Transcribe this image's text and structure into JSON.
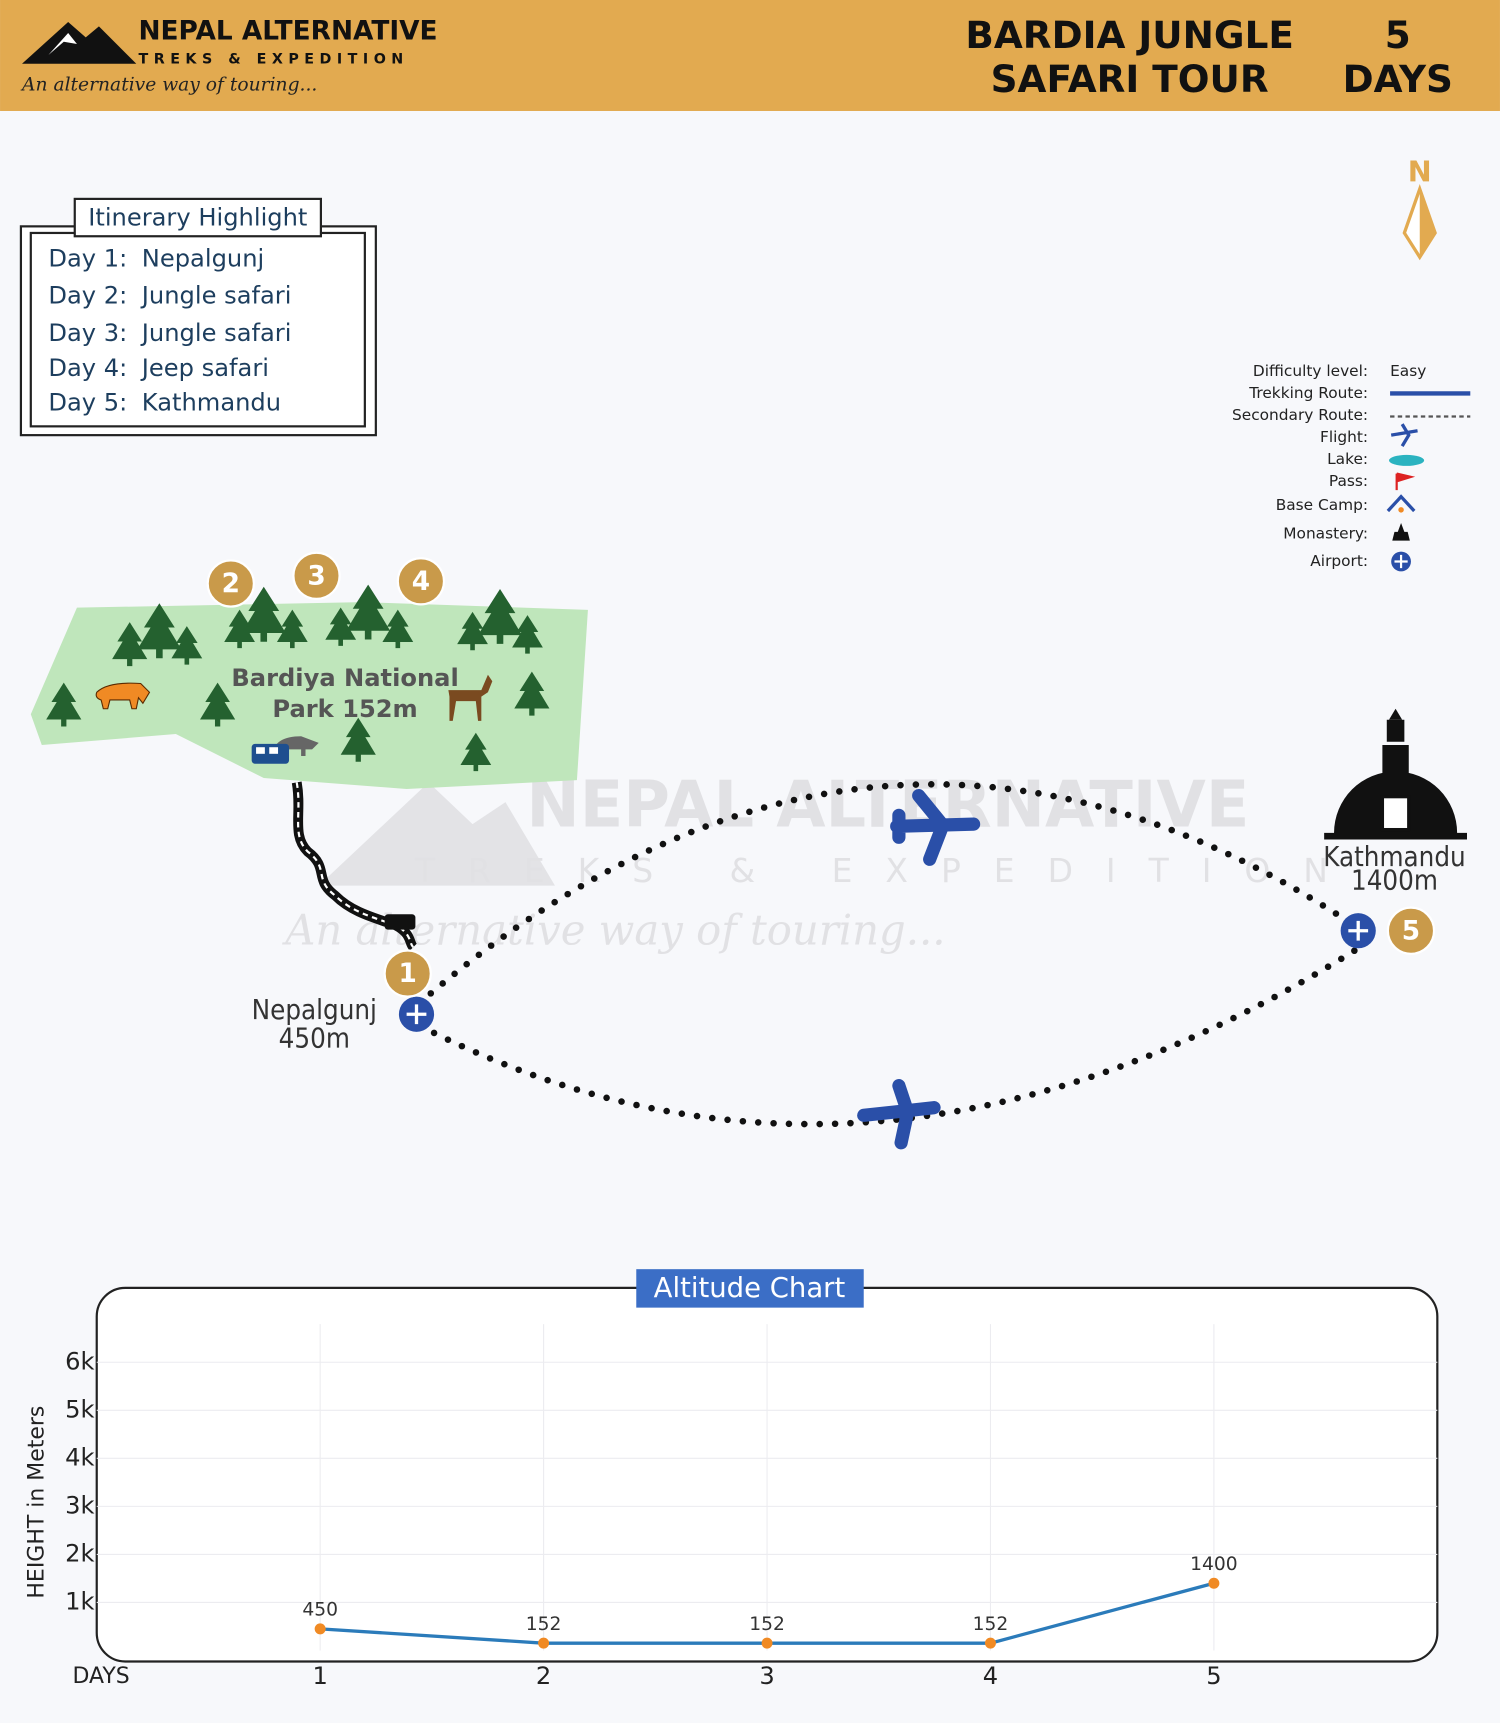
{
  "header": {
    "brand": "NEPAL ALTERNATIVE",
    "brand_sub": "TREKS & EXPEDITION",
    "tagline": "An alternative way of touring...",
    "title_lines": [
      "BARDIA JUNGLE",
      "SAFARI TOUR"
    ],
    "duration_lines": [
      "5",
      "DAYS"
    ]
  },
  "itinerary": {
    "title": "Itinerary Highlight",
    "rows": [
      {
        "day": "Day 1:",
        "place": "Nepalgunj"
      },
      {
        "day": "Day 2:",
        "place": "Jungle safari"
      },
      {
        "day": "Day 3:",
        "place": "Jungle safari"
      },
      {
        "day": "Day 4:",
        "place": "Jeep safari"
      },
      {
        "day": "Day 5:",
        "place": "Kathmandu"
      }
    ]
  },
  "compass": "N",
  "legend": {
    "difficulty_label": "Difficulty level:",
    "difficulty": "Easy",
    "items": [
      "Trekking Route:",
      "Secondary Route:",
      "Flight:",
      "Lake:",
      "Pass:",
      "Base Camp:",
      "Monastery:",
      "Airport:"
    ]
  },
  "map": {
    "park_lines": [
      "Bardiya National",
      "Park 152m"
    ],
    "start_lines": [
      "Nepalgunj",
      "450m"
    ],
    "end_lines": [
      "Kathmandu",
      "1400m"
    ],
    "markers": [
      "1",
      "2",
      "3",
      "4",
      "5"
    ],
    "watermark": {
      "brand": "NEPAL ALTERNATIVE",
      "sub": "TREKS & EXPEDITION",
      "tagline": "An alternative way of touring..."
    }
  },
  "chart_data": {
    "type": "line",
    "title": "Altitude Chart",
    "x_label": "DAYS",
    "y_label": "HEIGHT in Meters",
    "x": [
      1,
      2,
      3,
      4,
      5
    ],
    "xlim": [
      0,
      6
    ],
    "xticks": [
      1,
      2,
      3,
      4,
      5
    ],
    "values": [
      450,
      152,
      152,
      152,
      1400
    ],
    "color": "#2b7bba",
    "marker_color": "#f08a24",
    "ylim": [
      0,
      7000
    ],
    "yticks": [
      {
        "value": 1000,
        "label": "1k"
      },
      {
        "value": 2000,
        "label": "2k"
      },
      {
        "value": 3000,
        "label": "3k"
      },
      {
        "value": 4000,
        "label": "4k"
      },
      {
        "value": 5000,
        "label": "5k"
      },
      {
        "value": 6000,
        "label": "6k"
      }
    ],
    "grid": true
  }
}
